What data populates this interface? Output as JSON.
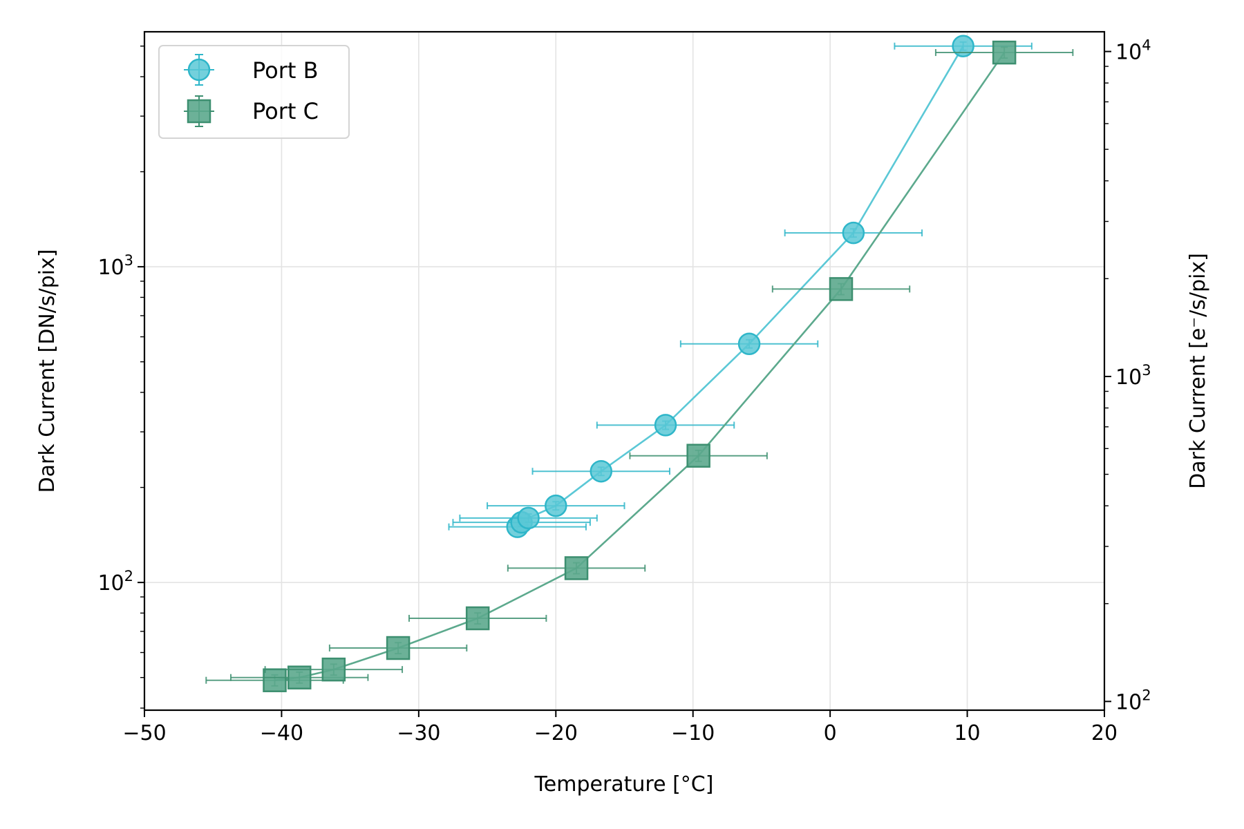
{
  "chart_data": {
    "type": "scatter",
    "title": "",
    "xlabel": "Temperature [°C]",
    "ylabel": "Dark Current [DN/s/pix]",
    "y2label": "Dark Current [e⁻/s/pix]",
    "xlim": [
      -50,
      20
    ],
    "ylim": [
      39.4,
      5550
    ],
    "y2lim": [
      94,
      11500
    ],
    "yscale": "log",
    "y2scale": "log",
    "grid": true,
    "legend": "top-left",
    "x_ticks": [
      -50,
      -40,
      -30,
      -20,
      -10,
      0,
      10,
      20
    ],
    "x_tick_labels": [
      "−50",
      "−40",
      "−30",
      "−20",
      "−10",
      "0",
      "10",
      "20"
    ],
    "y_ticks": [
      {
        "value": 100,
        "base": "10",
        "exp": "2"
      },
      {
        "value": 1000,
        "base": "10",
        "exp": "3"
      }
    ],
    "y2_ticks": [
      {
        "value": 100,
        "base": "10",
        "exp": "2"
      },
      {
        "value": 1000,
        "base": "10",
        "exp": "3"
      },
      {
        "value": 10000,
        "base": "10",
        "exp": "4"
      }
    ],
    "series": [
      {
        "name": "Port B",
        "marker": "circle",
        "color": "#5bc8d6",
        "edge": "#2fb6c9",
        "x": [
          -22.8,
          -22.5,
          -22.0,
          -20.0,
          -16.7,
          -12.0,
          -5.9,
          1.7,
          9.7
        ],
        "y": [
          150,
          155,
          160,
          175,
          225,
          315,
          570,
          1280,
          5000
        ],
        "xerr": 5,
        "yerr_frac": 0.03
      },
      {
        "name": "Port C",
        "marker": "square",
        "color": "#5ca98d",
        "edge": "#3d8f70",
        "x": [
          -40.5,
          -38.7,
          -36.2,
          -31.5,
          -25.7,
          -18.5,
          -9.6,
          0.8,
          12.7
        ],
        "y": [
          49,
          50,
          53,
          62,
          77,
          111,
          252,
          850,
          4770
        ],
        "xerr": 5,
        "yerr_frac": 0.04
      }
    ]
  }
}
